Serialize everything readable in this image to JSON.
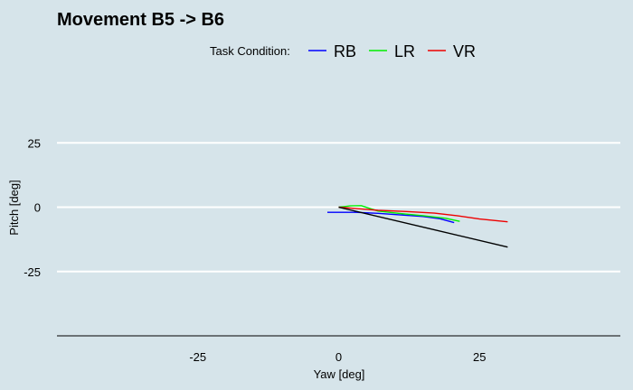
{
  "chart_data": {
    "type": "line",
    "title": "Movement B5 -> B6",
    "xlabel": "Yaw [deg]",
    "ylabel": "Pitch [deg]",
    "xlim": [
      -50,
      50
    ],
    "ylim": [
      -50,
      50
    ],
    "xticks": [
      -25,
      0,
      25
    ],
    "yticks": [
      -25,
      0,
      25
    ],
    "grid": "horizontal",
    "legend": {
      "title": "Task Condition:",
      "position": "top",
      "entries": [
        {
          "name": "RB",
          "color": "#0000ff"
        },
        {
          "name": "LR",
          "color": "#00ee00"
        },
        {
          "name": "VR",
          "color": "#ee0000"
        }
      ]
    },
    "series": [
      {
        "name": "RB",
        "color": "#0000ff",
        "x": [
          -2,
          0,
          3,
          7,
          11,
          15,
          18,
          20.5
        ],
        "y": [
          -2,
          -2,
          -2,
          -2.4,
          -3,
          -3.6,
          -4.5,
          -6
        ]
      },
      {
        "name": "LR",
        "color": "#00ee00",
        "x": [
          0,
          2,
          4,
          7,
          11,
          15,
          19,
          21.5
        ],
        "y": [
          0,
          0.5,
          0.6,
          -1.5,
          -2.5,
          -3.3,
          -4.3,
          -5.5
        ]
      },
      {
        "name": "VR",
        "color": "#ee0000",
        "x": [
          0,
          3,
          7,
          12,
          17,
          21,
          25,
          30
        ],
        "y": [
          0,
          -0.5,
          -1.2,
          -1.7,
          -2.3,
          -3.3,
          -4.6,
          -5.7
        ]
      },
      {
        "name": "reference",
        "color": "#000000",
        "x": [
          0,
          30
        ],
        "y": [
          0,
          -15.5
        ]
      }
    ]
  }
}
